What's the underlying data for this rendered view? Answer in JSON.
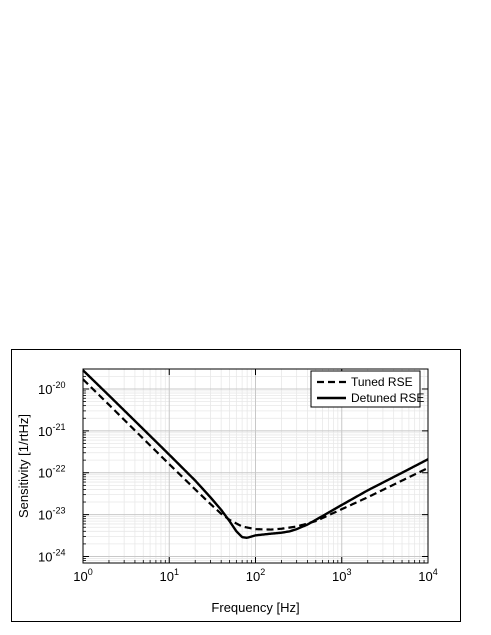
{
  "chart_data": {
    "type": "line",
    "xlabel": "Frequency [Hz]",
    "ylabel": "Sensitivity [1/rtHz]",
    "x_scale": "log",
    "y_scale": "log",
    "xlim": [
      1,
      10000
    ],
    "ylim": [
      7e-25,
      3e-20
    ],
    "grid": true,
    "legend_position": "top-right",
    "x_ticks": [
      {
        "base": "10",
        "exp": "0",
        "value": 1
      },
      {
        "base": "10",
        "exp": "1",
        "value": 10
      },
      {
        "base": "10",
        "exp": "2",
        "value": 100
      },
      {
        "base": "10",
        "exp": "3",
        "value": 1000
      },
      {
        "base": "10",
        "exp": "4",
        "value": 10000
      }
    ],
    "y_ticks": [
      {
        "base": "10",
        "exp": "-20",
        "value": 1e-20
      },
      {
        "base": "10",
        "exp": "-21",
        "value": 1e-21
      },
      {
        "base": "10",
        "exp": "-22",
        "value": 1e-22
      },
      {
        "base": "10",
        "exp": "-23",
        "value": 1e-23
      },
      {
        "base": "10",
        "exp": "-24",
        "value": 1e-24
      }
    ],
    "series": [
      {
        "name": "Tuned RSE",
        "style": "dashed",
        "color": "#000000",
        "x": [
          1,
          2,
          5,
          10,
          20,
          30,
          40,
          50,
          70,
          100,
          150,
          200,
          300,
          500,
          1000,
          2000,
          5000,
          10000
        ],
        "y": [
          1.7e-20,
          4.2e-21,
          6.5e-22,
          1.6e-22,
          4e-23,
          1.8e-23,
          1.05e-23,
          7.5e-24,
          5.2e-24,
          4.5e-24,
          4.4e-24,
          4.6e-24,
          5.2e-24,
          7e-24,
          1.35e-23,
          2.6e-23,
          6.5e-23,
          1.3e-22
        ]
      },
      {
        "name": "Detuned RSE",
        "style": "solid",
        "color": "#000000",
        "x": [
          1,
          2,
          5,
          10,
          20,
          30,
          40,
          50,
          60,
          70,
          80,
          100,
          150,
          200,
          250,
          300,
          400,
          500,
          1000,
          2000,
          5000,
          10000
        ],
        "y": [
          2.8e-20,
          7e-21,
          1.1e-21,
          2.7e-22,
          6.5e-23,
          2.6e-23,
          1.3e-23,
          7e-24,
          4e-24,
          2.9e-24,
          2.8e-24,
          3.2e-24,
          3.5e-24,
          3.7e-24,
          4e-24,
          4.5e-24,
          5.8e-24,
          7.5e-24,
          1.7e-23,
          3.8e-23,
          1e-22,
          2.1e-22
        ]
      }
    ]
  }
}
